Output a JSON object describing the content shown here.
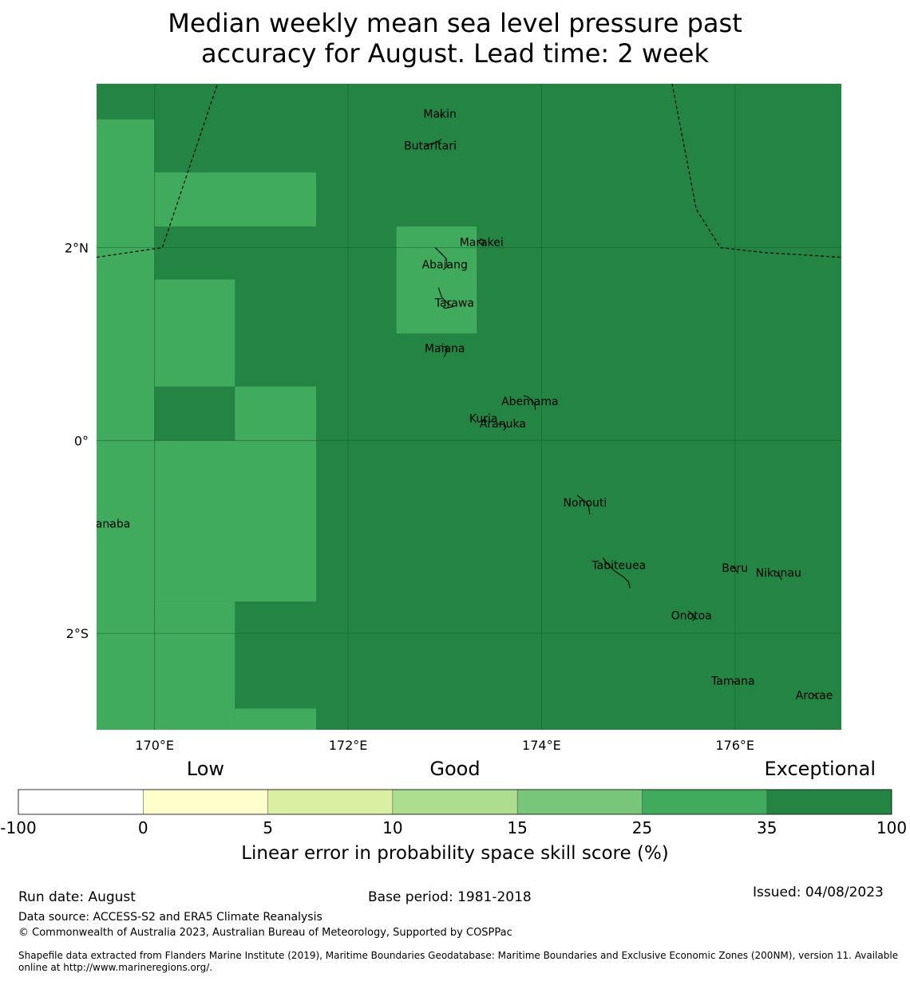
{
  "title_lines": [
    "Median weekly mean sea level pressure past",
    "accuracy for August. Lead time: 2 week"
  ],
  "map": {
    "lon_range": [
      169.4,
      177.1
    ],
    "lat_range": [
      -3.0,
      3.7
    ],
    "lon_ticks": [
      {
        "value": 170,
        "label": "170°E"
      },
      {
        "value": 172,
        "label": "172°E"
      },
      {
        "value": 174,
        "label": "174°E"
      },
      {
        "value": 176,
        "label": "176°E"
      }
    ],
    "lat_ticks": [
      {
        "value": 2,
        "label": "2°N"
      },
      {
        "value": 0,
        "label": "0°"
      },
      {
        "value": -2,
        "label": "2°S"
      }
    ],
    "colors": {
      "exceptional": "#238443",
      "good_high": "#41ab5d",
      "gridline": "#1a5c2e",
      "coast": "#000000"
    },
    "skill_cells_25_35": [
      {
        "lon": [
          169.4,
          170.0
        ],
        "lat": [
          -3.0,
          3.33
        ]
      },
      {
        "lon": [
          170.0,
          171.67
        ],
        "lat": [
          2.22,
          2.78
        ]
      },
      {
        "lon": [
          172.5,
          173.33
        ],
        "lat": [
          1.11,
          2.22
        ]
      },
      {
        "lon": [
          170.0,
          170.83
        ],
        "lat": [
          0.56,
          1.67
        ]
      },
      {
        "lon": [
          170.83,
          171.67
        ],
        "lat": [
          -0.0,
          0.56
        ]
      },
      {
        "lon": [
          170.0,
          171.67
        ],
        "lat": [
          -1.67,
          0.0
        ]
      },
      {
        "lon": [
          170.0,
          170.83
        ],
        "lat": [
          -3.0,
          -1.67
        ]
      },
      {
        "lon": [
          170.83,
          171.67
        ],
        "lat": [
          -3.0,
          -2.78
        ]
      }
    ],
    "eez_boundaries": [
      [
        [
          169.4,
          1.9
        ],
        [
          170.08,
          2.0
        ],
        [
          170.65,
          3.7
        ]
      ],
      [
        [
          175.35,
          3.7
        ],
        [
          175.6,
          2.4
        ],
        [
          175.85,
          2.0
        ],
        [
          176.3,
          1.95
        ],
        [
          177.1,
          1.9
        ]
      ]
    ],
    "islands": [
      {
        "name": "Makin",
        "lon": 172.95,
        "lat": 3.38
      },
      {
        "name": "Butaritari",
        "lon": 172.85,
        "lat": 3.05
      },
      {
        "name": "Marakei",
        "lon": 173.38,
        "lat": 2.05
      },
      {
        "name": "Abaiang",
        "lon": 173.0,
        "lat": 1.82
      },
      {
        "name": "Tarawa",
        "lon": 173.1,
        "lat": 1.42
      },
      {
        "name": "Maiana",
        "lon": 173.0,
        "lat": 0.95
      },
      {
        "name": "Abemama",
        "lon": 173.88,
        "lat": 0.4
      },
      {
        "name": "Kuria",
        "lon": 173.4,
        "lat": 0.22
      },
      {
        "name": "Aranuka",
        "lon": 173.6,
        "lat": 0.17
      },
      {
        "name": "Nonouti",
        "lon": 174.45,
        "lat": -0.65
      },
      {
        "name": "Banaba",
        "lon": 169.53,
        "lat": -0.87
      },
      {
        "name": "Tabiteuea",
        "lon": 174.8,
        "lat": -1.3
      },
      {
        "name": "Beru",
        "lon": 176.0,
        "lat": -1.33
      },
      {
        "name": "Nikunau",
        "lon": 176.45,
        "lat": -1.38
      },
      {
        "name": "Onotoa",
        "lon": 175.55,
        "lat": -1.82
      },
      {
        "name": "Tamana",
        "lon": 175.98,
        "lat": -2.5
      },
      {
        "name": "Arorae",
        "lon": 176.82,
        "lat": -2.65
      }
    ]
  },
  "legend": {
    "category_low": "Low",
    "category_good": "Good",
    "category_exceptional": "Exceptional",
    "tick_labels": [
      "-100",
      "0",
      "5",
      "10",
      "15",
      "25",
      "35",
      "100"
    ],
    "bin_colors": [
      "#ffffff",
      "#ffffcc",
      "#d9f0a3",
      "#addd8e",
      "#78c679",
      "#41ab5d",
      "#238443"
    ],
    "label": "Linear error in probability space skill score (%)"
  },
  "footer": {
    "run_date": "Run date: August",
    "base_period": "Base period: 1981-2018",
    "issued": "Issued: 04/08/2023",
    "data_source": "Data source: ACCESS-S2 and ERA5 Climate Reanalysis",
    "copyright": "© Commonwealth of Australia 2023, Australian Bureau of Meteorology, Supported by COSPPac",
    "shapefile_line1": "Shapefile data extracted from Flanders Marine Institute (2019), Maritime Boundaries Geodatabase: Maritime Boundaries and Exclusive Economic Zones (200NM), version 11. Available",
    "shapefile_line2": "online at http://www.marineregions.org/."
  }
}
